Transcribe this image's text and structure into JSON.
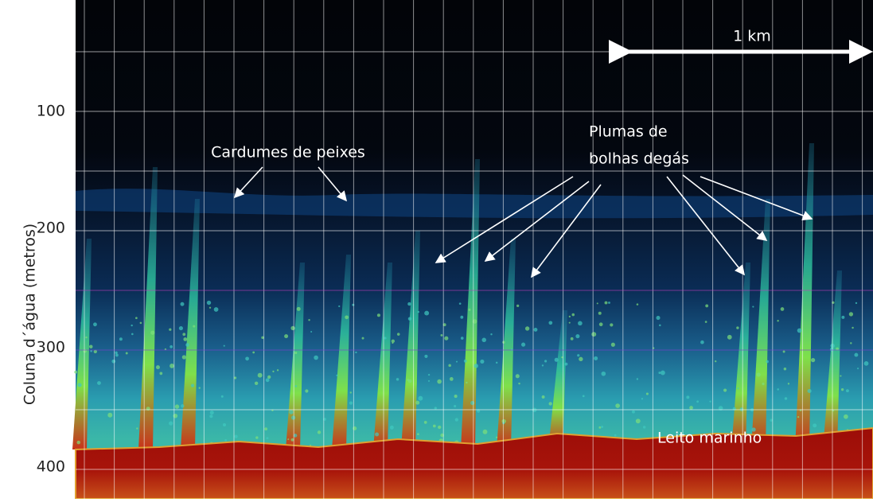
{
  "axis": {
    "label": "Coluna d´água (metros)",
    "ticks": [
      100,
      200,
      300,
      400
    ]
  },
  "annotations": {
    "scale": "1 km",
    "fish": "Cardumes de peixes",
    "plumes": [
      "Plumas de",
      "bolhas degás"
    ],
    "seabed": "Leito marinho"
  }
}
